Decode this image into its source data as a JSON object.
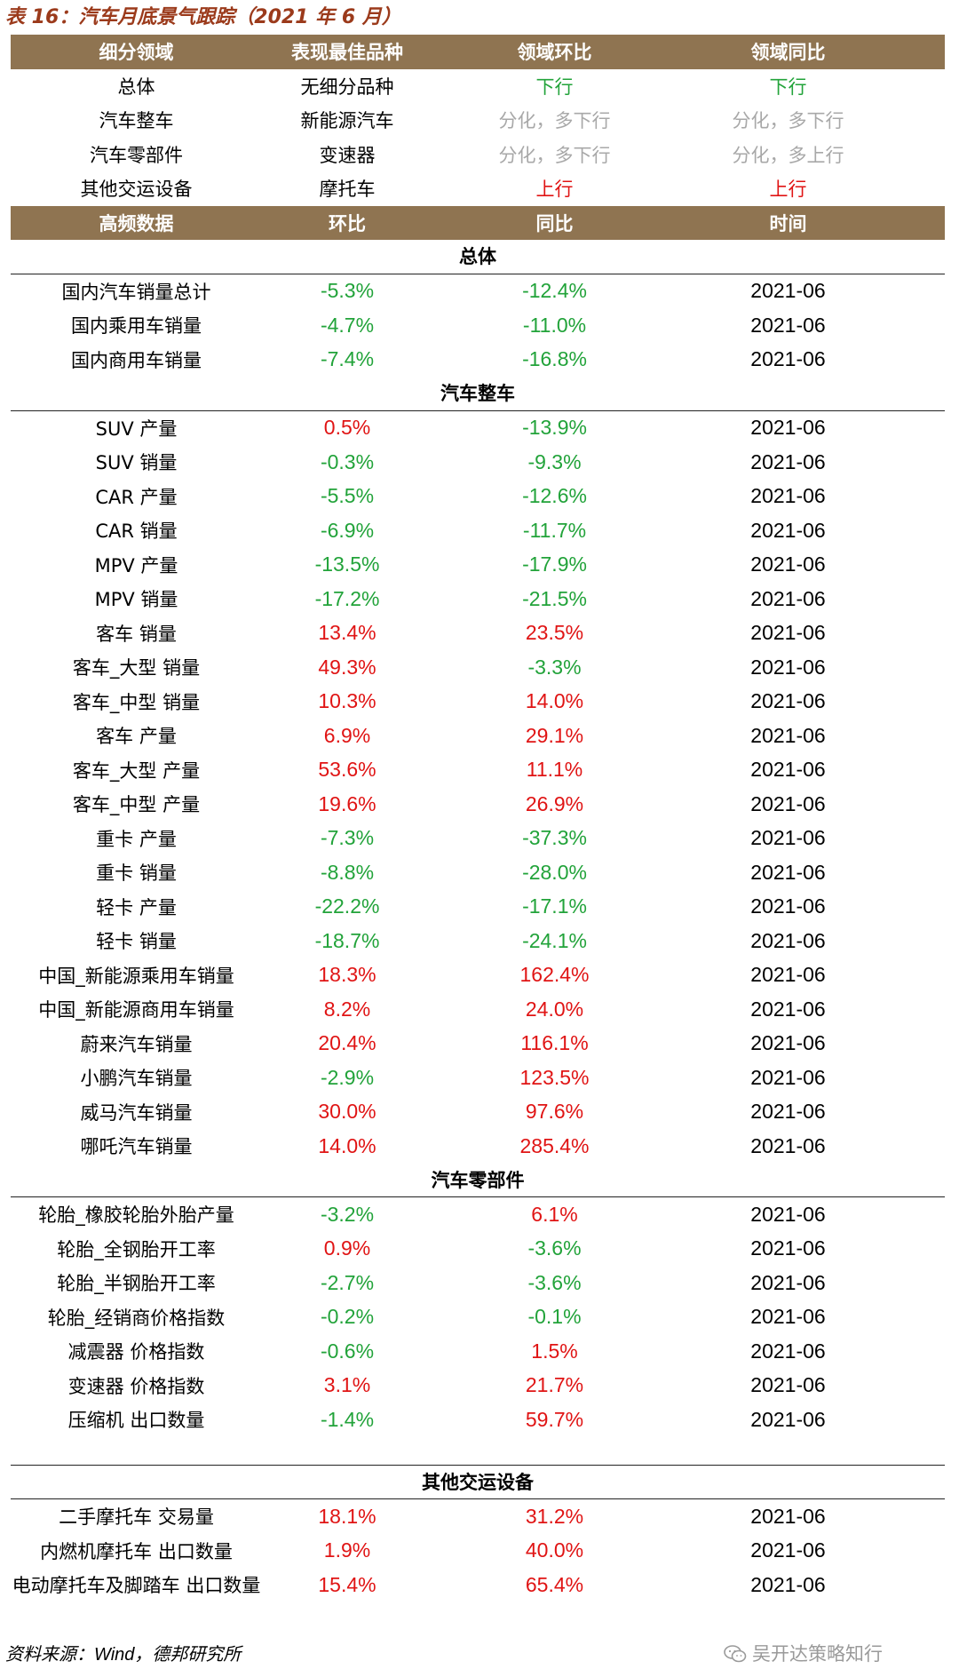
{
  "caption": "表 16：汽车月底景气跟踪（2021 年 6 月）",
  "summary": {
    "headers": [
      "细分领域",
      "表现最佳品种",
      "领域环比",
      "领域同比"
    ],
    "rows": [
      {
        "field": "总体",
        "best": "无细分品种",
        "mom": "下行",
        "mom_color": "green",
        "yoy": "下行",
        "yoy_color": "green"
      },
      {
        "field": "汽车整车",
        "best": "新能源汽车",
        "mom": "分化，多下行",
        "mom_color": "gray",
        "yoy": "分化，多下行",
        "yoy_color": "gray"
      },
      {
        "field": "汽车零部件",
        "best": "变速器",
        "mom": "分化，多下行",
        "mom_color": "gray",
        "yoy": "分化，多上行",
        "yoy_color": "gray"
      },
      {
        "field": "其他交运设备",
        "best": "摩托车",
        "mom": "上行",
        "mom_color": "red",
        "yoy": "上行",
        "yoy_color": "red"
      }
    ]
  },
  "data_headers": [
    "高频数据",
    "环比",
    "同比",
    "时间"
  ],
  "sections": [
    {
      "title": "总体",
      "rows": [
        {
          "name": "国内汽车销量总计",
          "mom": "-5.3%",
          "yoy": "-12.4%",
          "time": "2021-06"
        },
        {
          "name": "国内乘用车销量",
          "mom": "-4.7%",
          "yoy": "-11.0%",
          "time": "2021-06"
        },
        {
          "name": "国内商用车销量",
          "mom": "-7.4%",
          "yoy": "-16.8%",
          "time": "2021-06"
        }
      ]
    },
    {
      "title": "汽车整车",
      "rows": [
        {
          "name": "SUV 产量",
          "mom": "0.5%",
          "yoy": "-13.9%",
          "time": "2021-06"
        },
        {
          "name": "SUV 销量",
          "mom": "-0.3%",
          "yoy": "-9.3%",
          "time": "2021-06"
        },
        {
          "name": "CAR 产量",
          "mom": "-5.5%",
          "yoy": "-12.6%",
          "time": "2021-06"
        },
        {
          "name": "CAR 销量",
          "mom": "-6.9%",
          "yoy": "-11.7%",
          "time": "2021-06"
        },
        {
          "name": "MPV 产量",
          "mom": "-13.5%",
          "yoy": "-17.9%",
          "time": "2021-06"
        },
        {
          "name": "MPV 销量",
          "mom": "-17.2%",
          "yoy": "-21.5%",
          "time": "2021-06"
        },
        {
          "name": "客车 销量",
          "mom": "13.4%",
          "yoy": "23.5%",
          "time": "2021-06"
        },
        {
          "name": "客车_大型 销量",
          "mom": "49.3%",
          "yoy": "-3.3%",
          "time": "2021-06"
        },
        {
          "name": "客车_中型 销量",
          "mom": "10.3%",
          "yoy": "14.0%",
          "time": "2021-06"
        },
        {
          "name": "客车 产量",
          "mom": "6.9%",
          "yoy": "29.1%",
          "time": "2021-06"
        },
        {
          "name": "客车_大型 产量",
          "mom": "53.6%",
          "yoy": "11.1%",
          "time": "2021-06"
        },
        {
          "name": "客车_中型 产量",
          "mom": "19.6%",
          "yoy": "26.9%",
          "time": "2021-06"
        },
        {
          "name": "重卡 产量",
          "mom": "-7.3%",
          "yoy": "-37.3%",
          "time": "2021-06"
        },
        {
          "name": "重卡 销量",
          "mom": "-8.8%",
          "yoy": "-28.0%",
          "time": "2021-06"
        },
        {
          "name": "轻卡 产量",
          "mom": "-22.2%",
          "yoy": "-17.1%",
          "time": "2021-06"
        },
        {
          "name": "轻卡 销量",
          "mom": "-18.7%",
          "yoy": "-24.1%",
          "time": "2021-06"
        },
        {
          "name": "中国_新能源乘用车销量",
          "mom": "18.3%",
          "yoy": "162.4%",
          "time": "2021-06"
        },
        {
          "name": "中国_新能源商用车销量",
          "mom": "8.2%",
          "yoy": "24.0%",
          "time": "2021-06"
        },
        {
          "name": "蔚来汽车销量",
          "mom": "20.4%",
          "yoy": "116.1%",
          "time": "2021-06"
        },
        {
          "name": "小鹏汽车销量",
          "mom": "-2.9%",
          "yoy": "123.5%",
          "time": "2021-06"
        },
        {
          "name": "威马汽车销量",
          "mom": "30.0%",
          "yoy": "97.6%",
          "time": "2021-06"
        },
        {
          "name": "哪吒汽车销量",
          "mom": "14.0%",
          "yoy": "285.4%",
          "time": "2021-06"
        }
      ]
    },
    {
      "title": "汽车零部件",
      "rows": [
        {
          "name": "轮胎_橡胶轮胎外胎产量",
          "mom": "-3.2%",
          "yoy": "6.1%",
          "time": "2021-06"
        },
        {
          "name": "轮胎_全钢胎开工率",
          "mom": "0.9%",
          "yoy": "-3.6%",
          "time": "2021-06"
        },
        {
          "name": "轮胎_半钢胎开工率",
          "mom": "-2.7%",
          "yoy": "-3.6%",
          "time": "2021-06"
        },
        {
          "name": "轮胎_经销商价格指数",
          "mom": "-0.2%",
          "yoy": "-0.1%",
          "time": "2021-06"
        },
        {
          "name": "减震器 价格指数",
          "mom": "-0.6%",
          "yoy": "1.5%",
          "time": "2021-06"
        },
        {
          "name": "变速器 价格指数",
          "mom": "3.1%",
          "yoy": "21.7%",
          "time": "2021-06"
        },
        {
          "name": "压缩机 出口数量",
          "mom": "-1.4%",
          "yoy": "59.7%",
          "time": "2021-06"
        }
      ]
    },
    {
      "title": "其他交运设备",
      "rows": [
        {
          "name": "二手摩托车 交易量",
          "mom": "18.1%",
          "yoy": "31.2%",
          "time": "2021-06"
        },
        {
          "name": "内燃机摩托车 出口数量",
          "mom": "1.9%",
          "yoy": "40.0%",
          "time": "2021-06"
        },
        {
          "name": "电动摩托车及脚踏车 出口数量",
          "mom": "15.4%",
          "yoy": "65.4%",
          "time": "2021-06"
        }
      ]
    }
  ],
  "colors": {
    "header_bg": "#8f7451",
    "up": "#e01414",
    "down": "#22a33a",
    "neutral": "#a8a8a8",
    "caption": "#9b3a1b"
  },
  "footer": {
    "prefix": "资料来源：",
    "source": "Wind",
    "suffix": "，德邦研究所"
  },
  "watermark": {
    "icon": "wechat-icon",
    "text": "吴开达策略知行"
  }
}
